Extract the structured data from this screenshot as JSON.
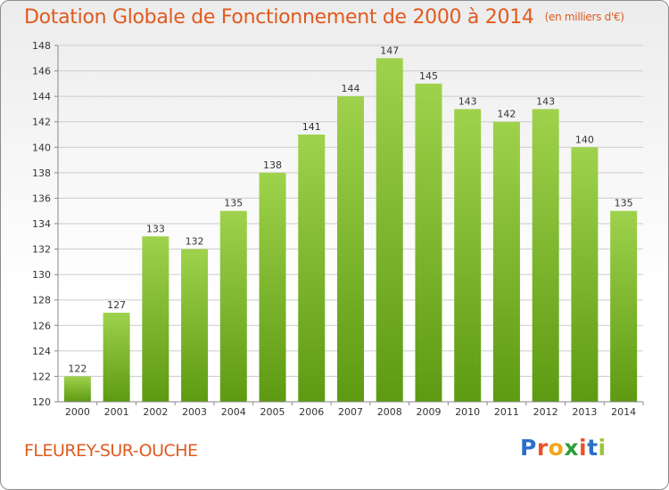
{
  "title": "Dotation Globale de Fonctionnement de 2000 à 2014",
  "unit_note": "(en milliers d'€)",
  "commune": "FLEUREY-SUR-OUCHE",
  "logo": {
    "letters": [
      "P",
      "r",
      "o",
      "x",
      "i",
      "t",
      "i"
    ],
    "colors": [
      "#2a6fc9",
      "#e8532b",
      "#f2a61c",
      "#2e9e3a",
      "#e8532b",
      "#2a6fc9",
      "#9bc43a"
    ]
  },
  "colors": {
    "title": "#e05a1e",
    "bar_top": "#9fd24c",
    "bar_bottom": "#5d9a12",
    "grid": "#cccccc"
  },
  "chart_data": {
    "type": "bar",
    "categories": [
      "2000",
      "2001",
      "2002",
      "2003",
      "2004",
      "2005",
      "2006",
      "2007",
      "2008",
      "2009",
      "2010",
      "2011",
      "2012",
      "2013",
      "2014"
    ],
    "values": [
      122,
      127,
      133,
      132,
      135,
      138,
      141,
      144,
      147,
      145,
      143,
      142,
      143,
      140,
      135
    ],
    "ylim": [
      120,
      148
    ],
    "yticks": [
      120,
      122,
      124,
      126,
      128,
      130,
      132,
      134,
      136,
      138,
      140,
      142,
      144,
      146,
      148
    ],
    "grid": true,
    "xlabel": "",
    "ylabel": ""
  }
}
